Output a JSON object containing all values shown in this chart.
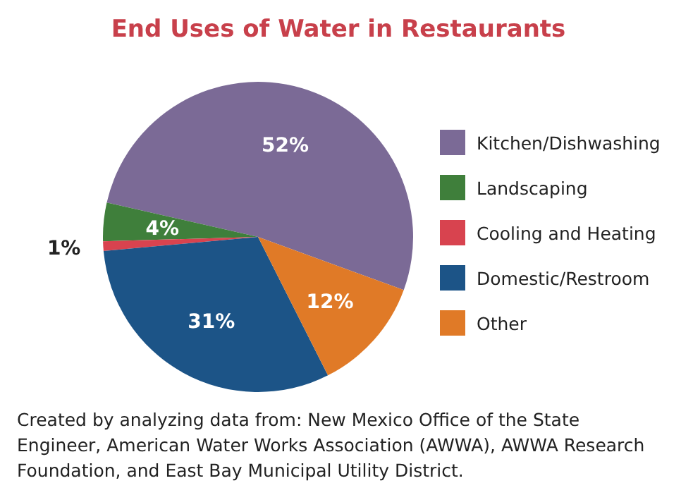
{
  "chart_data": {
    "type": "pie",
    "title": "End Uses of Water in Restaurants",
    "categories": [
      "Kitchen/Dishwashing",
      "Landscaping",
      "Cooling and Heating",
      "Domestic/Restroom",
      "Other"
    ],
    "values": [
      52,
      4,
      1,
      31,
      12
    ],
    "colors": [
      "#7b6a96",
      "#3f7f3b",
      "#d8434f",
      "#1c5487",
      "#e07a27"
    ],
    "value_labels": [
      "52%",
      "4%",
      "1%",
      "31%",
      "12%"
    ],
    "legend": "right",
    "annotations": [
      "Created by analyzing data from: New Mexico Office of the State Engineer, American Water Works Association (AWWA), AWWA Research Foundation, and East Bay Municipal Utility District."
    ]
  }
}
